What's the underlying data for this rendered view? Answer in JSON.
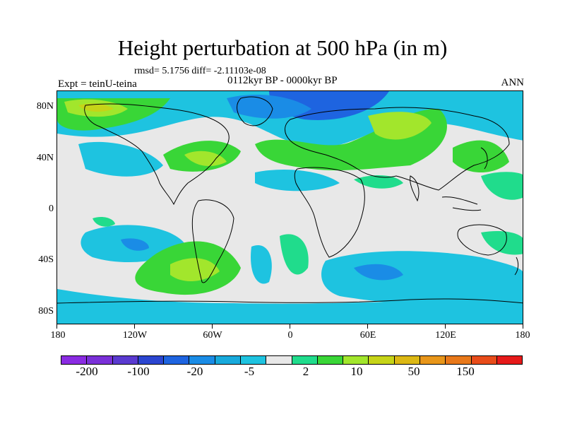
{
  "title": "Height perturbation at 500 hPa (in m)",
  "stats_line": "rmsd= 5.1756 diff= -2.11103e-08",
  "period": "0112kyr BP - 0000kyr BP",
  "experiment": "Expt = teinU-teina",
  "season": "ANN",
  "map": {
    "lat_labels": [
      "80N",
      "40N",
      "0",
      "40S",
      "80S"
    ],
    "lon_labels": [
      "180",
      "120W",
      "60W",
      "0",
      "60E",
      "120E",
      "180"
    ]
  },
  "colorbar": {
    "colors": [
      "#8a2be2",
      "#7a30d8",
      "#5a3ad0",
      "#2b45d0",
      "#1e64e0",
      "#1a8ce6",
      "#18aadc",
      "#1ec3e0",
      "#e8e8e8",
      "#20dc8c",
      "#39d637",
      "#a2e62c",
      "#c6d418",
      "#dcb814",
      "#e8961a",
      "#e8781a",
      "#e84c1a",
      "#e61a1a"
    ],
    "labels": [
      "-200",
      "-100",
      "-20",
      "-5",
      "2",
      "10",
      "50",
      "150"
    ]
  }
}
